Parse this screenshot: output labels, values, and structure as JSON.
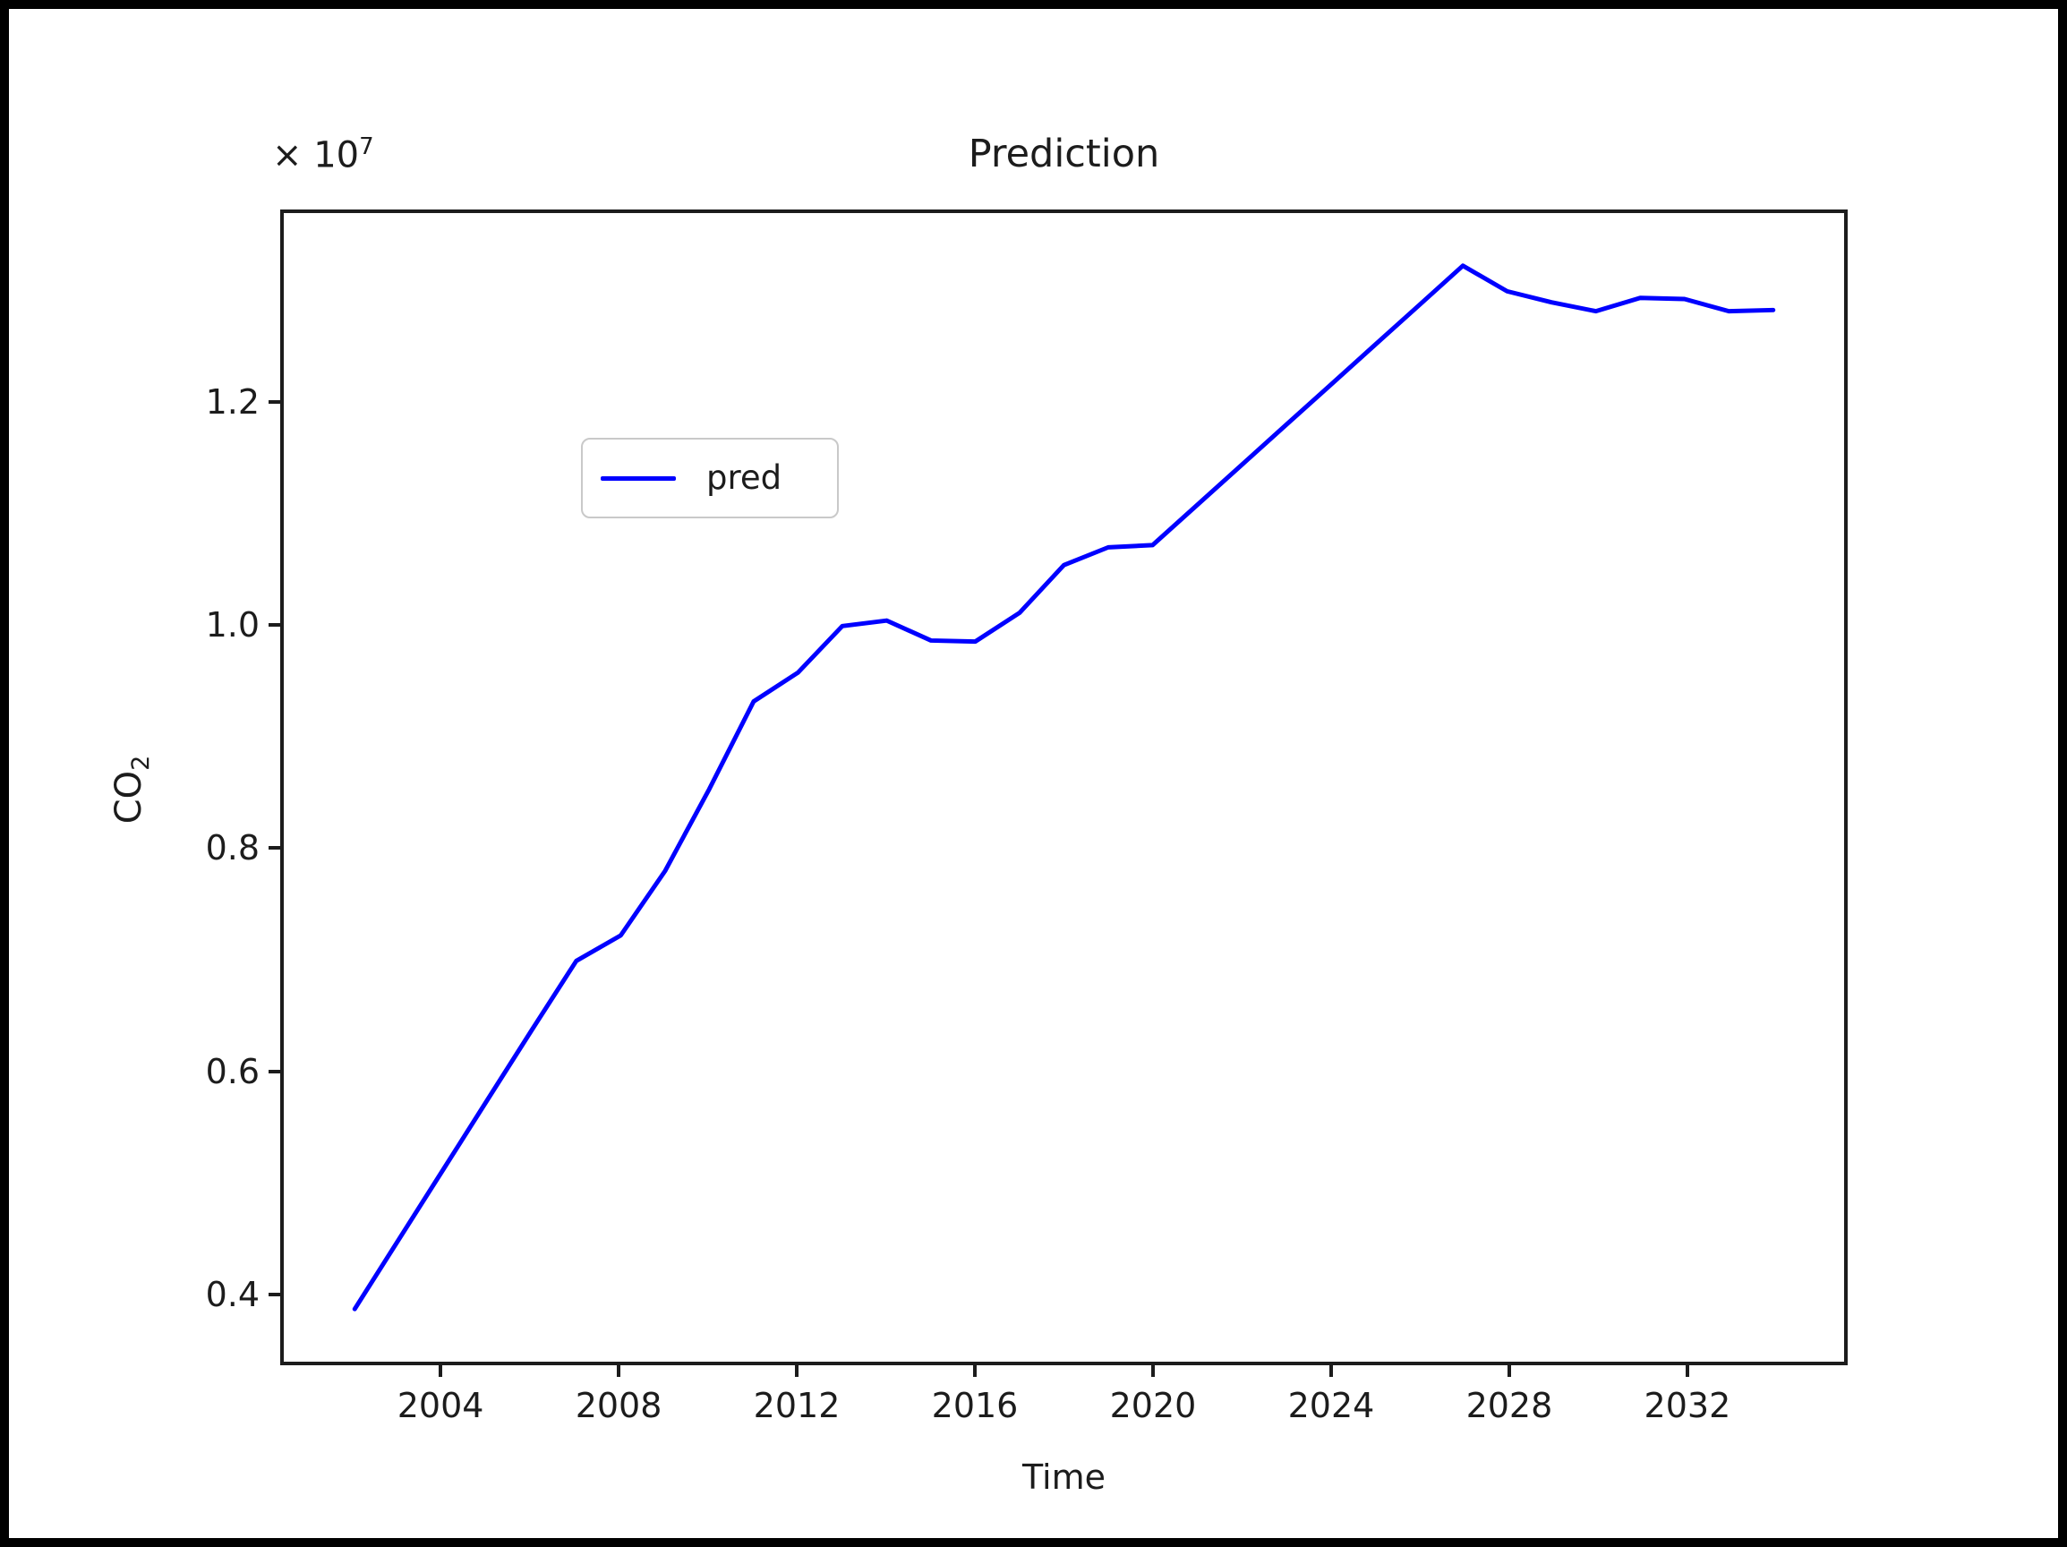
{
  "figure": {
    "title": "Prediction",
    "xlabel": "Time",
    "ylabel_base": "CO",
    "ylabel_sub": "2",
    "offset_base": "× 10",
    "offset_exp": "7"
  },
  "legend": {
    "label": "pred"
  },
  "colors": {
    "line": "#0000ff",
    "axis": "#1c1c1c",
    "text": "#1c1c1c",
    "legend_border": "#c9c9c9",
    "frame": "#000000",
    "background": "#ffffff"
  },
  "chart_data": {
    "type": "line",
    "title": "Prediction",
    "xlabel": "Time",
    "ylabel": "CO2",
    "y_unit_multiplier": "1e7",
    "grid": false,
    "legend_position": "upper left",
    "legend_entries": [
      "pred"
    ],
    "xlim": [
      2000.4,
      2035.6
    ],
    "ylim": [
      0.3365,
      1.3725
    ],
    "x_ticks": [
      2004,
      2008,
      2012,
      2016,
      2020,
      2024,
      2028,
      2032
    ],
    "x_tick_labels": [
      "2004",
      "2008",
      "2012",
      "2016",
      "2020",
      "2024",
      "2028",
      "2032"
    ],
    "y_tick_values": [
      0.4,
      0.6,
      0.8,
      1.0,
      1.2
    ],
    "y_ticks": [
      "0.4",
      "0.6",
      "0.8",
      "1.0",
      "1.2"
    ],
    "series": [
      {
        "name": "pred",
        "x": [
          2002,
          2003,
          2004,
          2005,
          2006,
          2007,
          2008,
          2009,
          2010,
          2011,
          2012,
          2013,
          2014,
          2015,
          2016,
          2017,
          2018,
          2019,
          2020,
          2021,
          2022,
          2023,
          2024,
          2025,
          2026,
          2027,
          2028,
          2029,
          2030,
          2031,
          2032,
          2033,
          2034
        ],
        "values": [
          0.384,
          0.447,
          0.51,
          0.573,
          0.636,
          0.698,
          0.721,
          0.779,
          0.853,
          0.932,
          0.958,
          1.0,
          1.005,
          0.987,
          0.986,
          1.012,
          1.055,
          1.071,
          1.073,
          1.109,
          1.145,
          1.181,
          1.217,
          1.253,
          1.289,
          1.325,
          1.302,
          1.292,
          1.284,
          1.296,
          1.295,
          1.284,
          1.285
        ]
      }
    ]
  }
}
